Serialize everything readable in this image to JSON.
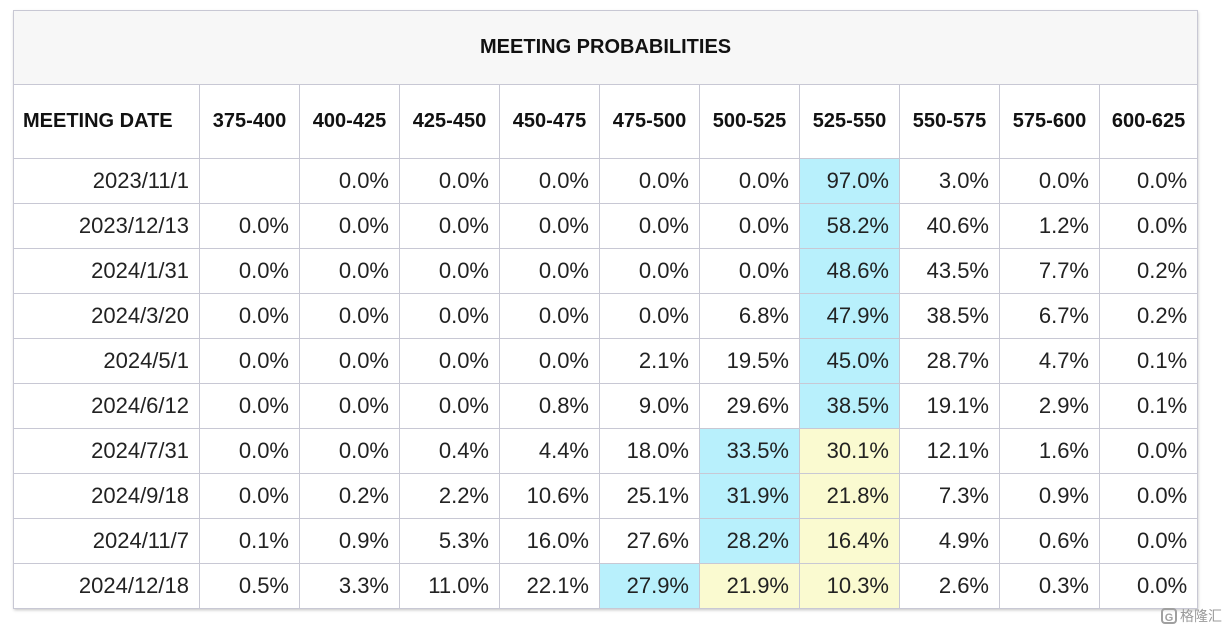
{
  "table": {
    "title": "MEETING PROBABILITIES",
    "date_header": "MEETING DATE",
    "columns": [
      "375-400",
      "400-425",
      "425-450",
      "450-475",
      "475-500",
      "500-525",
      "525-550",
      "550-575",
      "575-600",
      "600-625"
    ],
    "rows": [
      {
        "date": "2023/11/1",
        "values": [
          "",
          "0.0%",
          "0.0%",
          "0.0%",
          "0.0%",
          "0.0%",
          "97.0%",
          "3.0%",
          "0.0%",
          "0.0%"
        ],
        "highlights": [
          null,
          null,
          null,
          null,
          null,
          null,
          "blue",
          null,
          null,
          null
        ]
      },
      {
        "date": "2023/12/13",
        "values": [
          "0.0%",
          "0.0%",
          "0.0%",
          "0.0%",
          "0.0%",
          "0.0%",
          "58.2%",
          "40.6%",
          "1.2%",
          "0.0%"
        ],
        "highlights": [
          null,
          null,
          null,
          null,
          null,
          null,
          "blue",
          null,
          null,
          null
        ]
      },
      {
        "date": "2024/1/31",
        "values": [
          "0.0%",
          "0.0%",
          "0.0%",
          "0.0%",
          "0.0%",
          "0.0%",
          "48.6%",
          "43.5%",
          "7.7%",
          "0.2%"
        ],
        "highlights": [
          null,
          null,
          null,
          null,
          null,
          null,
          "blue",
          null,
          null,
          null
        ]
      },
      {
        "date": "2024/3/20",
        "values": [
          "0.0%",
          "0.0%",
          "0.0%",
          "0.0%",
          "0.0%",
          "6.8%",
          "47.9%",
          "38.5%",
          "6.7%",
          "0.2%"
        ],
        "highlights": [
          null,
          null,
          null,
          null,
          null,
          null,
          "blue",
          null,
          null,
          null
        ]
      },
      {
        "date": "2024/5/1",
        "values": [
          "0.0%",
          "0.0%",
          "0.0%",
          "0.0%",
          "2.1%",
          "19.5%",
          "45.0%",
          "28.7%",
          "4.7%",
          "0.1%"
        ],
        "highlights": [
          null,
          null,
          null,
          null,
          null,
          null,
          "blue",
          null,
          null,
          null
        ]
      },
      {
        "date": "2024/6/12",
        "values": [
          "0.0%",
          "0.0%",
          "0.0%",
          "0.8%",
          "9.0%",
          "29.6%",
          "38.5%",
          "19.1%",
          "2.9%",
          "0.1%"
        ],
        "highlights": [
          null,
          null,
          null,
          null,
          null,
          null,
          "blue",
          null,
          null,
          null
        ]
      },
      {
        "date": "2024/7/31",
        "values": [
          "0.0%",
          "0.0%",
          "0.4%",
          "4.4%",
          "18.0%",
          "33.5%",
          "30.1%",
          "12.1%",
          "1.6%",
          "0.0%"
        ],
        "highlights": [
          null,
          null,
          null,
          null,
          null,
          "blue",
          "yellow",
          null,
          null,
          null
        ]
      },
      {
        "date": "2024/9/18",
        "values": [
          "0.0%",
          "0.2%",
          "2.2%",
          "10.6%",
          "25.1%",
          "31.9%",
          "21.8%",
          "7.3%",
          "0.9%",
          "0.0%"
        ],
        "highlights": [
          null,
          null,
          null,
          null,
          null,
          "blue",
          "yellow",
          null,
          null,
          null
        ]
      },
      {
        "date": "2024/11/7",
        "values": [
          "0.1%",
          "0.9%",
          "5.3%",
          "16.0%",
          "27.6%",
          "28.2%",
          "16.4%",
          "4.9%",
          "0.6%",
          "0.0%"
        ],
        "highlights": [
          null,
          null,
          null,
          null,
          null,
          "blue",
          "yellow",
          null,
          null,
          null
        ]
      },
      {
        "date": "2024/12/18",
        "values": [
          "0.5%",
          "3.3%",
          "11.0%",
          "22.1%",
          "27.9%",
          "21.9%",
          "10.3%",
          "2.6%",
          "0.3%",
          "0.0%"
        ],
        "highlights": [
          null,
          null,
          null,
          null,
          "blue",
          "yellow",
          "yellow",
          null,
          null,
          null
        ]
      }
    ]
  },
  "colors": {
    "highlight_blue": "#b8f0fc",
    "highlight_yellow": "#fafad0",
    "border": "#c8c8d4"
  },
  "watermark": {
    "icon": "g-logo-icon",
    "icon_glyph": "G",
    "text": "格隆汇"
  }
}
